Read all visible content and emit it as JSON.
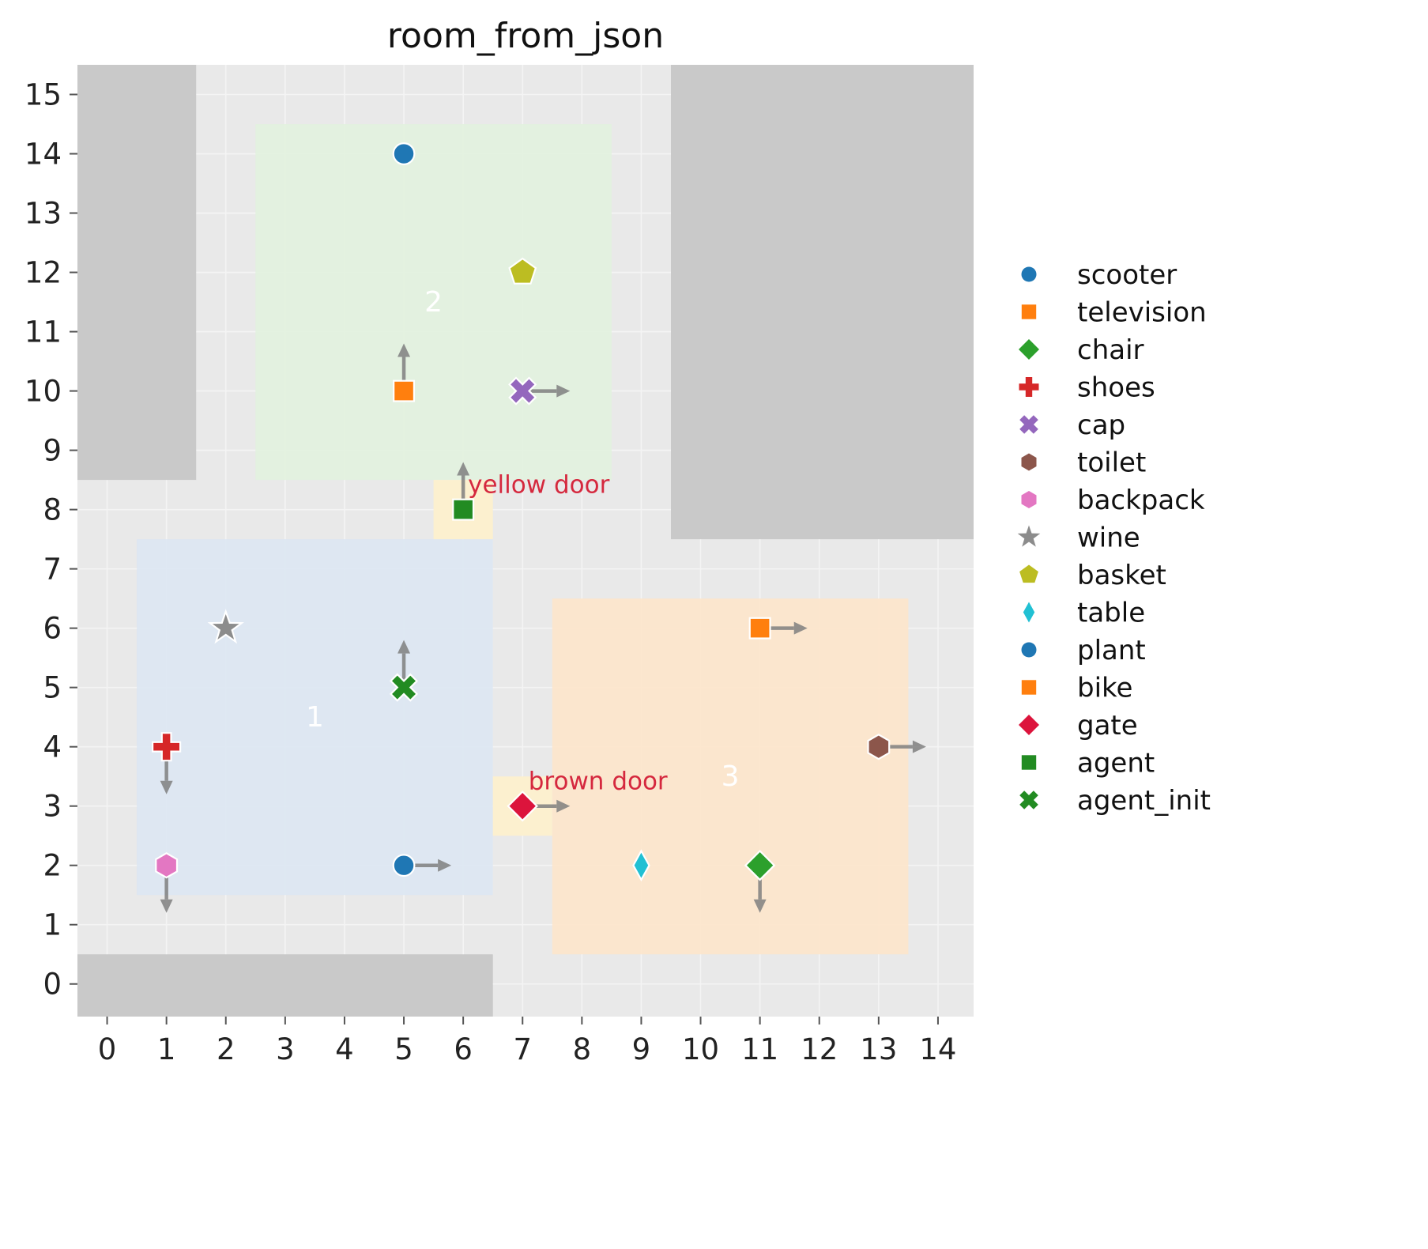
{
  "figure": {
    "title": "room_from_json"
  },
  "chart_data": {
    "type": "scatter",
    "title": "room_from_json",
    "xlim": [
      -0.5,
      14.6
    ],
    "ylim": [
      -0.55,
      15.5
    ],
    "xticks": [
      0,
      1,
      2,
      3,
      4,
      5,
      6,
      7,
      8,
      9,
      10,
      11,
      12,
      13,
      14
    ],
    "yticks": [
      0,
      1,
      2,
      3,
      4,
      5,
      6,
      7,
      8,
      9,
      10,
      11,
      12,
      13,
      14,
      15
    ],
    "grid": true,
    "legend_position": "right",
    "colors": {
      "plot_bg": "#e9e9e9",
      "grid": "#f4f4f4",
      "obstacle": "#c9c9c9",
      "tick_label": "#222222",
      "tick_mark": "#555555",
      "arrow": "#7f7f7f",
      "door_fill": "#fcf0cf",
      "door_label": "#d5283e",
      "room_label": "#ffffff",
      "title": "#111111",
      "legend_text": "#111111"
    },
    "rooms": [
      {
        "label": "1",
        "x0": 0.5,
        "y0": 1.5,
        "x1": 6.5,
        "y1": 7.5,
        "fill": "#dce6f2",
        "label_x": 3.5,
        "label_y": 4.5
      },
      {
        "label": "2",
        "x0": 2.5,
        "y0": 8.5,
        "x1": 8.5,
        "y1": 14.5,
        "fill": "#e2f1de",
        "label_x": 5.5,
        "label_y": 11.5
      },
      {
        "label": "3",
        "x0": 7.5,
        "y0": 0.5,
        "x1": 13.5,
        "y1": 6.5,
        "fill": "#fce5cb",
        "label_x": 10.5,
        "label_y": 3.5
      }
    ],
    "obstacles": [
      {
        "x0": -0.5,
        "y0": 8.5,
        "x1": 1.5,
        "y1": 15.5
      },
      {
        "x0": 9.5,
        "y0": 7.5,
        "x1": 14.6,
        "y1": 15.5
      },
      {
        "x0": -0.5,
        "y0": -0.55,
        "x1": 6.5,
        "y1": 0.5
      }
    ],
    "doors": [
      {
        "label": "yellow door",
        "x": 6,
        "y": 8,
        "label_x": 6.08,
        "label_y": 8.28
      },
      {
        "label": "brown door",
        "x": 7,
        "y": 3,
        "label_x": 7.1,
        "label_y": 3.28
      }
    ],
    "objects": [
      {
        "name": "scooter",
        "marker": "circle",
        "color": "#1f77b4",
        "x": 5,
        "y": 14,
        "arrow": null
      },
      {
        "name": "television",
        "marker": "square",
        "color": "#ff7f0e",
        "x": 5,
        "y": 10,
        "arrow": "up"
      },
      {
        "name": "chair",
        "marker": "diamond",
        "color": "#2ca02c",
        "x": 11,
        "y": 2,
        "arrow": "down"
      },
      {
        "name": "shoes",
        "marker": "plus",
        "color": "#d62728",
        "x": 1,
        "y": 4,
        "arrow": "down"
      },
      {
        "name": "cap",
        "marker": "x",
        "color": "#9467bd",
        "x": 7,
        "y": 10,
        "arrow": "right"
      },
      {
        "name": "toilet",
        "marker": "hexagon",
        "color": "#8c564b",
        "x": 13,
        "y": 4,
        "arrow": "right"
      },
      {
        "name": "backpack",
        "marker": "hexagon",
        "color": "#e377c2",
        "x": 1,
        "y": 2,
        "arrow": "down"
      },
      {
        "name": "wine",
        "marker": "star",
        "color": "#8c8c8c",
        "x": 2,
        "y": 6,
        "arrow": null
      },
      {
        "name": "basket",
        "marker": "pentagon",
        "color": "#bcbd22",
        "x": 7,
        "y": 12,
        "arrow": null
      },
      {
        "name": "table",
        "marker": "thin-diamond",
        "color": "#21c0d3",
        "x": 9,
        "y": 2,
        "arrow": null
      },
      {
        "name": "plant",
        "marker": "circle",
        "color": "#1f77b4",
        "x": 5,
        "y": 2,
        "arrow": "right"
      },
      {
        "name": "bike",
        "marker": "square",
        "color": "#ff7f0e",
        "x": 11,
        "y": 6,
        "arrow": "right"
      },
      {
        "name": "gate",
        "marker": "diamond",
        "color": "#dc143c",
        "x": 7,
        "y": 3,
        "arrow": "right"
      },
      {
        "name": "agent",
        "marker": "square",
        "color": "#228b22",
        "x": 6,
        "y": 8,
        "arrow": "up"
      },
      {
        "name": "agent_init",
        "marker": "x",
        "color": "#228b22",
        "x": 5,
        "y": 5,
        "arrow": "up"
      }
    ]
  }
}
